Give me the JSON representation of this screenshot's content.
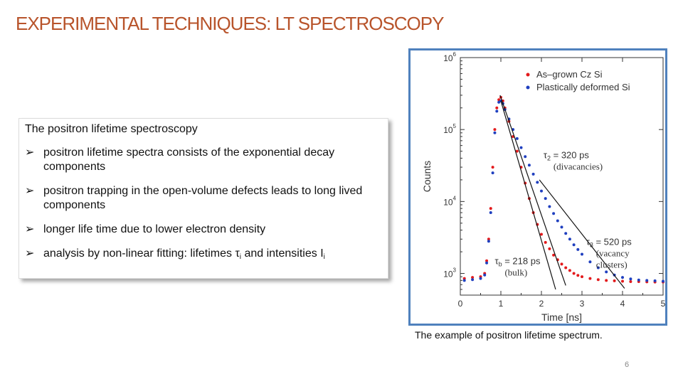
{
  "slide": {
    "title": "EXPERIMENTAL TECHNIQUES: LT SPECTROSCOPY",
    "page_number": "6",
    "caption": "The example of positron lifetime spectrum."
  },
  "textbox": {
    "heading": "The positron lifetime spectroscopy",
    "bullet_icon": "arrow-bullet-icon",
    "bullets": [
      "positron lifetime spectra consists of the exponential decay components",
      "positron trapping in the open-volume defects leads to long lived components",
      "longer life time due to lower electron density"
    ],
    "bullet4": {
      "prefix": "analysis by non-linear fitting: lifetimes ",
      "tau": "τ",
      "tau_sub": "i",
      "middle": " and intensities I",
      "i_sub": "i"
    }
  },
  "chart_data": {
    "type": "scatter",
    "xlabel": "Time [ns]",
    "ylabel": "Counts",
    "xlim": [
      0,
      5
    ],
    "ylim": [
      500,
      1000000
    ],
    "y_scale": "log",
    "x_ticks": [
      "0",
      "1",
      "2",
      "3",
      "4",
      "5"
    ],
    "y_ticks": [
      {
        "base": "10",
        "exp": "3",
        "value": 1000
      },
      {
        "base": "10",
        "exp": "4",
        "value": 10000
      },
      {
        "base": "10",
        "exp": "5",
        "value": 100000
      },
      {
        "base": "10",
        "exp": "6",
        "value": 1000000
      }
    ],
    "legend_position": "top-right",
    "series": [
      {
        "name": "As–grown Cz Si",
        "color": "#e31a1c",
        "points": [
          [
            -0.05,
            800
          ],
          [
            0.1,
            850
          ],
          [
            0.3,
            880
          ],
          [
            0.5,
            900
          ],
          [
            0.6,
            1000
          ],
          [
            0.65,
            1500
          ],
          [
            0.7,
            3000
          ],
          [
            0.75,
            8000
          ],
          [
            0.8,
            30000
          ],
          [
            0.85,
            100000
          ],
          [
            0.9,
            200000
          ],
          [
            0.95,
            260000
          ],
          [
            1.0,
            280000
          ],
          [
            1.05,
            250000
          ],
          [
            1.1,
            200000
          ],
          [
            1.2,
            130000
          ],
          [
            1.3,
            80000
          ],
          [
            1.4,
            50000
          ],
          [
            1.5,
            30000
          ],
          [
            1.6,
            18000
          ],
          [
            1.7,
            11000
          ],
          [
            1.8,
            7000
          ],
          [
            1.9,
            4800
          ],
          [
            2.0,
            3500
          ],
          [
            2.1,
            2700
          ],
          [
            2.2,
            2200
          ],
          [
            2.3,
            1800
          ],
          [
            2.4,
            1550
          ],
          [
            2.5,
            1350
          ],
          [
            2.6,
            1200
          ],
          [
            2.7,
            1100
          ],
          [
            2.8,
            1000
          ],
          [
            2.9,
            940
          ],
          [
            3.0,
            900
          ],
          [
            3.2,
            850
          ],
          [
            3.4,
            820
          ],
          [
            3.6,
            800
          ],
          [
            3.8,
            790
          ],
          [
            4.0,
            780
          ],
          [
            4.2,
            770
          ],
          [
            4.4,
            770
          ],
          [
            4.6,
            765
          ],
          [
            4.8,
            760
          ],
          [
            5.0,
            760
          ]
        ]
      },
      {
        "name": "Plastically deformed  Si",
        "color": "#1f3fbf",
        "points": [
          [
            -0.05,
            780
          ],
          [
            0.1,
            800
          ],
          [
            0.3,
            820
          ],
          [
            0.5,
            850
          ],
          [
            0.6,
            950
          ],
          [
            0.65,
            1400
          ],
          [
            0.7,
            2800
          ],
          [
            0.75,
            7000
          ],
          [
            0.8,
            25000
          ],
          [
            0.85,
            90000
          ],
          [
            0.9,
            180000
          ],
          [
            0.95,
            240000
          ],
          [
            1.0,
            250000
          ],
          [
            1.05,
            230000
          ],
          [
            1.1,
            190000
          ],
          [
            1.2,
            140000
          ],
          [
            1.3,
            100000
          ],
          [
            1.4,
            75000
          ],
          [
            1.5,
            56000
          ],
          [
            1.6,
            42000
          ],
          [
            1.7,
            32000
          ],
          [
            1.8,
            24000
          ],
          [
            1.9,
            18500
          ],
          [
            2.0,
            14000
          ],
          [
            2.1,
            11000
          ],
          [
            2.2,
            8500
          ],
          [
            2.3,
            6800
          ],
          [
            2.4,
            5400
          ],
          [
            2.5,
            4400
          ],
          [
            2.6,
            3600
          ],
          [
            2.7,
            3000
          ],
          [
            2.8,
            2500
          ],
          [
            2.9,
            2150
          ],
          [
            3.0,
            1850
          ],
          [
            3.2,
            1450
          ],
          [
            3.4,
            1200
          ],
          [
            3.6,
            1050
          ],
          [
            3.8,
            950
          ],
          [
            4.0,
            880
          ],
          [
            4.2,
            840
          ],
          [
            4.4,
            810
          ],
          [
            4.6,
            800
          ],
          [
            4.8,
            790
          ],
          [
            5.0,
            780
          ]
        ]
      }
    ],
    "fit_lines": [
      {
        "name": "tau_b",
        "from": [
          1.0,
          250000
        ],
        "to": [
          2.35,
          600
        ]
      },
      {
        "name": "tau_2",
        "from": [
          0.98,
          300000
        ],
        "to": [
          2.6,
          680
        ]
      },
      {
        "name": "tau_3",
        "from": [
          1.95,
          20000
        ],
        "to": [
          4.05,
          620
        ]
      }
    ],
    "annotations": [
      {
        "symbol": "τ",
        "sub": "2",
        "text": " = 320 ps",
        "line2": "(divacancies)",
        "x": 2.05,
        "y": 40000
      },
      {
        "symbol": "τ",
        "sub": "3",
        "text": " = 520 ps",
        "line2": "(vacancy",
        "line3": "clusters)",
        "x": 3.1,
        "y": 2500
      },
      {
        "symbol": "τ",
        "sub": "b",
        "text": " = 218 ps",
        "line2": "(bulk)",
        "x": 0.85,
        "y": 1350
      }
    ]
  }
}
